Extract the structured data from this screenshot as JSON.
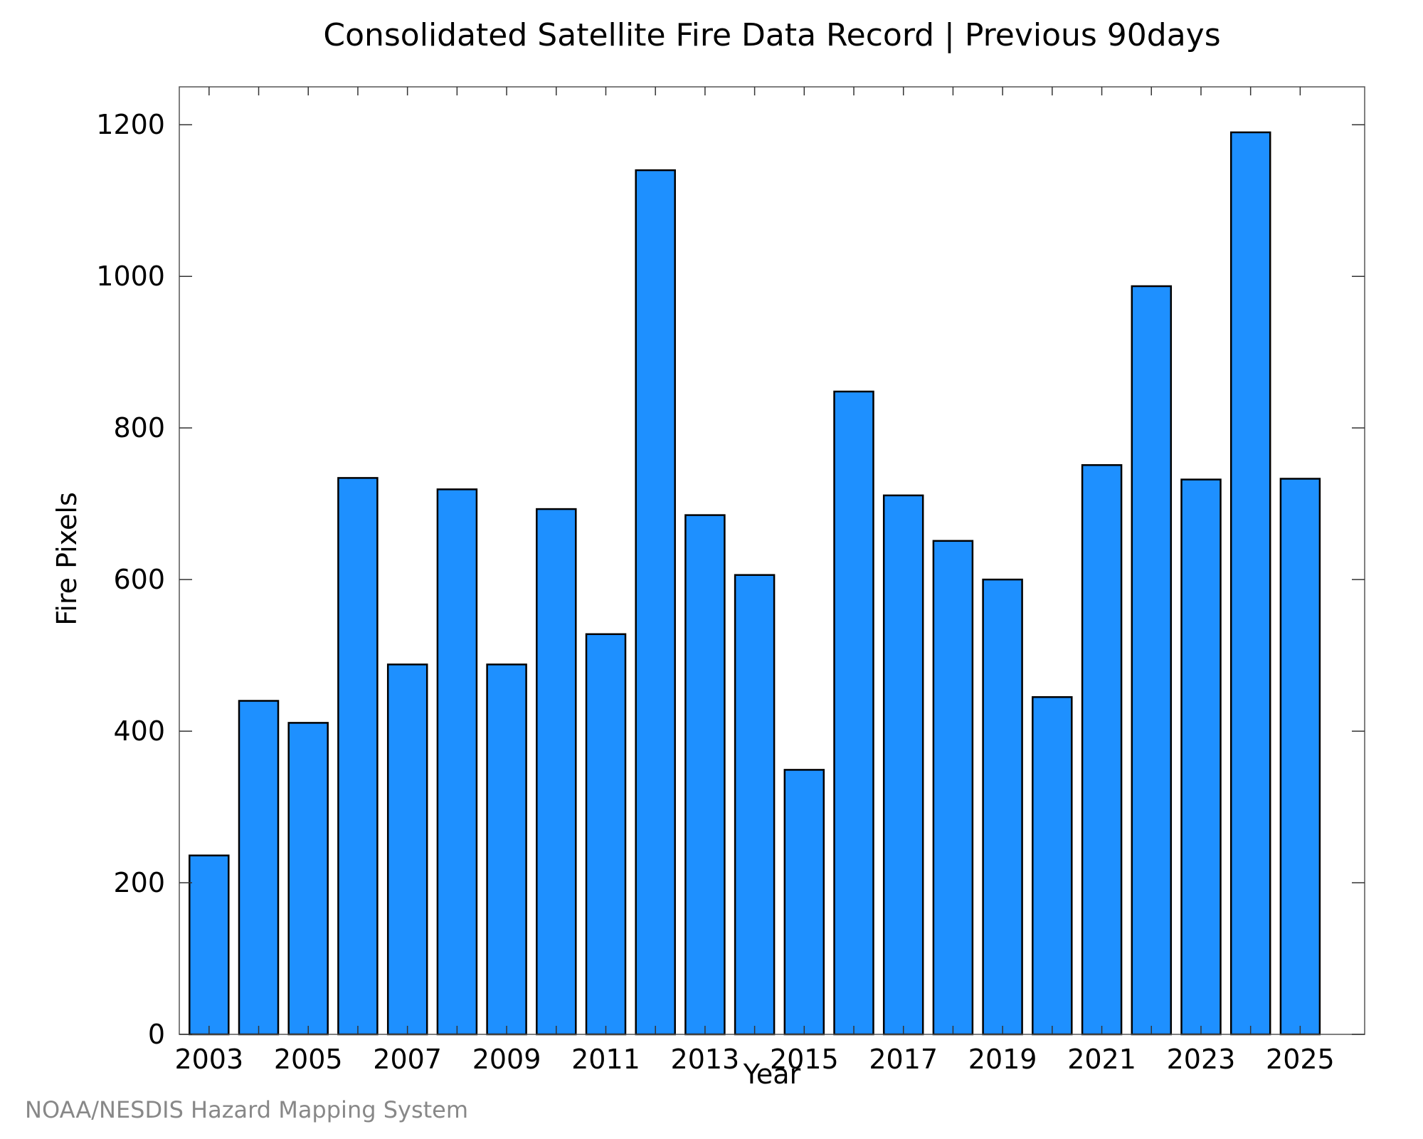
{
  "chart_data": {
    "type": "bar",
    "title": "Consolidated Satellite Fire Data Record | Previous 90days",
    "xlabel": "Year",
    "ylabel": "Fire Pixels",
    "categories": [
      "2003",
      "2004",
      "2005",
      "2006",
      "2007",
      "2008",
      "2009",
      "2010",
      "2011",
      "2012",
      "2013",
      "2014",
      "2015",
      "2016",
      "2017",
      "2018",
      "2019",
      "2020",
      "2021",
      "2022",
      "2023",
      "2024",
      "2025"
    ],
    "x_tick_labels": [
      "2003",
      "2005",
      "2007",
      "2009",
      "2011",
      "2013",
      "2015",
      "2017",
      "2019",
      "2021",
      "2023",
      "2025"
    ],
    "values": [
      236,
      440,
      411,
      734,
      488,
      719,
      488,
      693,
      528,
      1140,
      685,
      606,
      349,
      848,
      711,
      651,
      600,
      445,
      751,
      987,
      732,
      1190,
      733
    ],
    "ylim": [
      0,
      1250
    ],
    "y_ticks": [
      0,
      200,
      400,
      600,
      800,
      1000,
      1200
    ],
    "grid": false,
    "bar_color": "#1E90FF",
    "bar_edge_color": "#000000",
    "credit": "NOAA/NESDIS Hazard Mapping System"
  }
}
